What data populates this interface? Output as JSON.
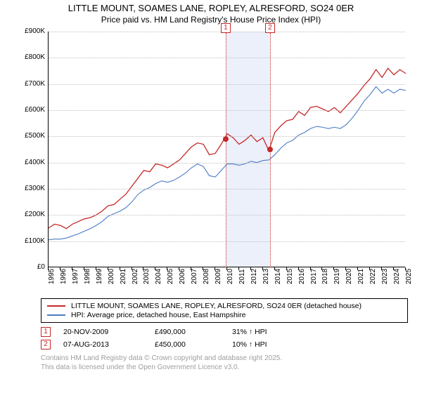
{
  "title": {
    "line1": "LITTLE MOUNT, SOAMES LANE, ROPLEY, ALRESFORD, SO24 0ER",
    "line2": "Price paid vs. HM Land Registry's House Price Index (HPI)"
  },
  "chart": {
    "type": "line",
    "ylim": [
      0,
      900000
    ],
    "ytick_step": 100000,
    "y_ticks": [
      "£0",
      "£100K",
      "£200K",
      "£300K",
      "£400K",
      "£500K",
      "£600K",
      "£700K",
      "£800K",
      "£900K"
    ],
    "x_years": [
      "1995",
      "1996",
      "1997",
      "1998",
      "1999",
      "2000",
      "2001",
      "2002",
      "2003",
      "2004",
      "2005",
      "2006",
      "2007",
      "2008",
      "2009",
      "2010",
      "2011",
      "2012",
      "2013",
      "2014",
      "2015",
      "2016",
      "2017",
      "2018",
      "2019",
      "2020",
      "2021",
      "2022",
      "2023",
      "2024",
      "2025"
    ],
    "background_color": "#ffffff",
    "grid_color": "#c0c0c0",
    "highlight_band_color": "#ecf0fa",
    "highlight_band": {
      "start_year": 2009.88,
      "end_year": 2013.6
    },
    "series": {
      "subject": {
        "label": "LITTLE MOUNT, SOAMES LANE, ROPLEY, ALRESFORD, SO24 0ER (detached house)",
        "color": "#c62828",
        "width": 1.3,
        "data": [
          [
            1995,
            150000
          ],
          [
            1995.5,
            165000
          ],
          [
            1996,
            160000
          ],
          [
            1996.5,
            148000
          ],
          [
            1997,
            165000
          ],
          [
            1997.5,
            175000
          ],
          [
            1998,
            185000
          ],
          [
            1998.5,
            190000
          ],
          [
            1999,
            200000
          ],
          [
            1999.5,
            215000
          ],
          [
            2000,
            235000
          ],
          [
            2000.5,
            240000
          ],
          [
            2001,
            260000
          ],
          [
            2001.5,
            280000
          ],
          [
            2002,
            310000
          ],
          [
            2002.5,
            340000
          ],
          [
            2003,
            370000
          ],
          [
            2003.5,
            365000
          ],
          [
            2004,
            395000
          ],
          [
            2004.5,
            390000
          ],
          [
            2005,
            380000
          ],
          [
            2005.5,
            395000
          ],
          [
            2006,
            410000
          ],
          [
            2006.5,
            435000
          ],
          [
            2007,
            460000
          ],
          [
            2007.5,
            475000
          ],
          [
            2008,
            470000
          ],
          [
            2008.5,
            430000
          ],
          [
            2009,
            435000
          ],
          [
            2009.5,
            470000
          ],
          [
            2010,
            510000
          ],
          [
            2010.5,
            495000
          ],
          [
            2011,
            470000
          ],
          [
            2011.5,
            485000
          ],
          [
            2012,
            505000
          ],
          [
            2012.5,
            480000
          ],
          [
            2013,
            495000
          ],
          [
            2013.5,
            445000
          ],
          [
            2014,
            515000
          ],
          [
            2014.5,
            540000
          ],
          [
            2015,
            560000
          ],
          [
            2015.5,
            565000
          ],
          [
            2016,
            595000
          ],
          [
            2016.5,
            580000
          ],
          [
            2017,
            610000
          ],
          [
            2017.5,
            615000
          ],
          [
            2018,
            605000
          ],
          [
            2018.5,
            595000
          ],
          [
            2019,
            610000
          ],
          [
            2019.5,
            590000
          ],
          [
            2020,
            615000
          ],
          [
            2020.5,
            640000
          ],
          [
            2021,
            665000
          ],
          [
            2021.5,
            695000
          ],
          [
            2022,
            720000
          ],
          [
            2022.5,
            755000
          ],
          [
            2023,
            725000
          ],
          [
            2023.5,
            760000
          ],
          [
            2024,
            735000
          ],
          [
            2024.5,
            755000
          ],
          [
            2025,
            740000
          ]
        ]
      },
      "hpi": {
        "label": "HPI: Average price, detached house, East Hampshire",
        "color": "#4a7cc4",
        "width": 1.1,
        "data": [
          [
            1995,
            105000
          ],
          [
            1995.5,
            108000
          ],
          [
            1996,
            108000
          ],
          [
            1996.5,
            112000
          ],
          [
            1997,
            120000
          ],
          [
            1997.5,
            128000
          ],
          [
            1998,
            138000
          ],
          [
            1998.5,
            148000
          ],
          [
            1999,
            160000
          ],
          [
            1999.5,
            175000
          ],
          [
            2000,
            195000
          ],
          [
            2000.5,
            205000
          ],
          [
            2001,
            215000
          ],
          [
            2001.5,
            228000
          ],
          [
            2002,
            250000
          ],
          [
            2002.5,
            278000
          ],
          [
            2003,
            295000
          ],
          [
            2003.5,
            305000
          ],
          [
            2004,
            320000
          ],
          [
            2004.5,
            330000
          ],
          [
            2005,
            325000
          ],
          [
            2005.5,
            332000
          ],
          [
            2006,
            345000
          ],
          [
            2006.5,
            360000
          ],
          [
            2007,
            380000
          ],
          [
            2007.5,
            395000
          ],
          [
            2008,
            385000
          ],
          [
            2008.5,
            350000
          ],
          [
            2009,
            345000
          ],
          [
            2009.5,
            370000
          ],
          [
            2010,
            395000
          ],
          [
            2010.5,
            395000
          ],
          [
            2011,
            390000
          ],
          [
            2011.5,
            395000
          ],
          [
            2012,
            405000
          ],
          [
            2012.5,
            400000
          ],
          [
            2013,
            408000
          ],
          [
            2013.5,
            410000
          ],
          [
            2014,
            430000
          ],
          [
            2014.5,
            455000
          ],
          [
            2015,
            475000
          ],
          [
            2015.5,
            485000
          ],
          [
            2016,
            505000
          ],
          [
            2016.5,
            515000
          ],
          [
            2017,
            530000
          ],
          [
            2017.5,
            538000
          ],
          [
            2018,
            535000
          ],
          [
            2018.5,
            530000
          ],
          [
            2019,
            535000
          ],
          [
            2019.5,
            530000
          ],
          [
            2020,
            545000
          ],
          [
            2020.5,
            570000
          ],
          [
            2021,
            600000
          ],
          [
            2021.5,
            635000
          ],
          [
            2022,
            660000
          ],
          [
            2022.5,
            690000
          ],
          [
            2023,
            665000
          ],
          [
            2023.5,
            680000
          ],
          [
            2024,
            665000
          ],
          [
            2024.5,
            680000
          ],
          [
            2025,
            675000
          ]
        ]
      }
    },
    "markers": [
      {
        "flag": "1",
        "year": 2009.88,
        "value": 490000
      },
      {
        "flag": "2",
        "year": 2013.6,
        "value": 450000
      }
    ],
    "marker_color": "#c62828"
  },
  "legend": {
    "box_border": "#000000",
    "items": [
      {
        "key": "subject"
      },
      {
        "key": "hpi"
      }
    ]
  },
  "sales": [
    {
      "idx": "1",
      "date": "20-NOV-2009",
      "price": "£490,000",
      "pct": "31% ↑ HPI"
    },
    {
      "idx": "2",
      "date": "07-AUG-2013",
      "price": "£450,000",
      "pct": "10% ↑ HPI"
    }
  ],
  "footer": {
    "line1": "Contains HM Land Registry data © Crown copyright and database right 2025.",
    "line2": "This data is licensed under the Open Government Licence v3.0."
  }
}
